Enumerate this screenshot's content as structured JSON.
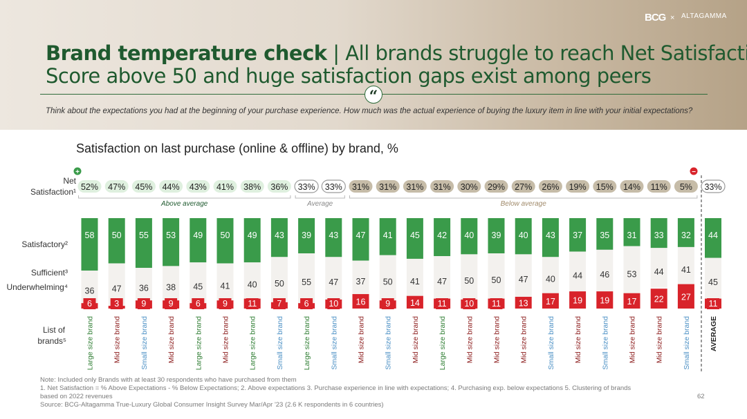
{
  "header": {
    "logo_bcg": "BCG",
    "logo_separator": "×",
    "logo_altagamma": "ALTAGAMMA",
    "title_bold": "Brand temperature check",
    "title_rest": " | All brands struggle to reach Net Satisfaction",
    "title_line2": "Score above 50 and huge satisfaction gaps exist among peers",
    "quote_mark": "“",
    "question": "Think about the expectations you had at the beginning of your purchase experience. How much was the actual experience of buying the luxury item in line with your initial expectations?"
  },
  "colors": {
    "title_green": "#1f5a2f",
    "satisfactory": "#3a9b4a",
    "sufficient": "#f3f1ee",
    "underwhelming": "#d8232a",
    "pill_above": "#dff0df",
    "pill_below": "#c6bca8",
    "large_label": "#2e7d32",
    "mid_label": "#8b1a1a",
    "small_label": "#4a8fc4",
    "average_label": "#222222"
  },
  "footer": {
    "note": "Note: Included only Brands with at least 30 respondents who have purchased from them",
    "footnote_1": "1. Net Satisfaction = % Above Expectations - % Below Expectations; 2. Above expectations 3. Purchase experience in line with expectations; 4. Purchasing exp. below expectations   5. Clustering of brands",
    "footnote_2": "based on 2022 revenues",
    "source": "Source: BCG-Altagamma True-Luxury Global Consumer Insight Survey Mar/Apr '23 (2.6 K respondents in 6 countries)",
    "page_number": "62"
  },
  "chart_data": {
    "type": "bar",
    "stacked": true,
    "title": "Satisfaction on last purchase (online & offline) by brand, %",
    "row_labels": {
      "net_line1": "Net",
      "net_line2": "Satisfaction¹",
      "satisfactory": "Satisfactory²",
      "sufficient": "Sufficient³",
      "underwhelming": "Underwhelming⁴",
      "list_line1": "List of",
      "list_line2": "brands⁵"
    },
    "groups": {
      "above": "Above average",
      "average": "Average",
      "below": "Below average"
    },
    "plus_sign": "+",
    "minus_sign": "−",
    "categories": [
      "Large size brand",
      "Mid size brand",
      "Small size brand",
      "Mid size brand",
      "Large size brand",
      "Mid size brand",
      "Large size brand",
      "Small size brand",
      "Large size brand",
      "Small size brand",
      "Mid size brand",
      "Small size brand",
      "Mid size brand",
      "Large size brand",
      "Mid size brand",
      "Mid size brand",
      "Mid size brand",
      "Small size brand",
      "Mid size brand",
      "Small size brand",
      "Mid size brand",
      "Mid size brand",
      "Small size brand",
      "AVERAGE"
    ],
    "size_class": [
      "large",
      "mid",
      "small",
      "mid",
      "large",
      "mid",
      "large",
      "small",
      "large",
      "small",
      "mid",
      "small",
      "mid",
      "large",
      "mid",
      "mid",
      "mid",
      "small",
      "mid",
      "small",
      "mid",
      "mid",
      "small",
      "average"
    ],
    "net_satisfaction": [
      "52%",
      "47%",
      "45%",
      "44%",
      "43%",
      "41%",
      "38%",
      "36%",
      "33%",
      "33%",
      "31%",
      "31%",
      "31%",
      "31%",
      "30%",
      "29%",
      "27%",
      "26%",
      "19%",
      "15%",
      "14%",
      "11%",
      "5%",
      "33%"
    ],
    "net_group": [
      "above",
      "above",
      "above",
      "above",
      "above",
      "above",
      "above",
      "above",
      "average",
      "average",
      "below",
      "below",
      "below",
      "below",
      "below",
      "below",
      "below",
      "below",
      "below",
      "below",
      "below",
      "below",
      "below",
      "average"
    ],
    "series": [
      {
        "name": "Satisfactory",
        "values": [
          58,
          50,
          55,
          53,
          49,
          50,
          49,
          43,
          39,
          43,
          47,
          41,
          45,
          42,
          40,
          39,
          40,
          43,
          37,
          35,
          31,
          33,
          32,
          44
        ]
      },
      {
        "name": "Sufficient",
        "values": [
          36,
          47,
          36,
          38,
          45,
          41,
          40,
          50,
          55,
          47,
          37,
          50,
          41,
          47,
          50,
          50,
          47,
          40,
          44,
          46,
          53,
          44,
          41,
          45
        ]
      },
      {
        "name": "Underwhelming",
        "values": [
          6,
          3,
          9,
          9,
          6,
          9,
          11,
          7,
          6,
          10,
          16,
          9,
          14,
          11,
          10,
          11,
          13,
          17,
          19,
          19,
          17,
          22,
          27,
          11
        ]
      }
    ],
    "ylim": [
      0,
      100
    ]
  }
}
